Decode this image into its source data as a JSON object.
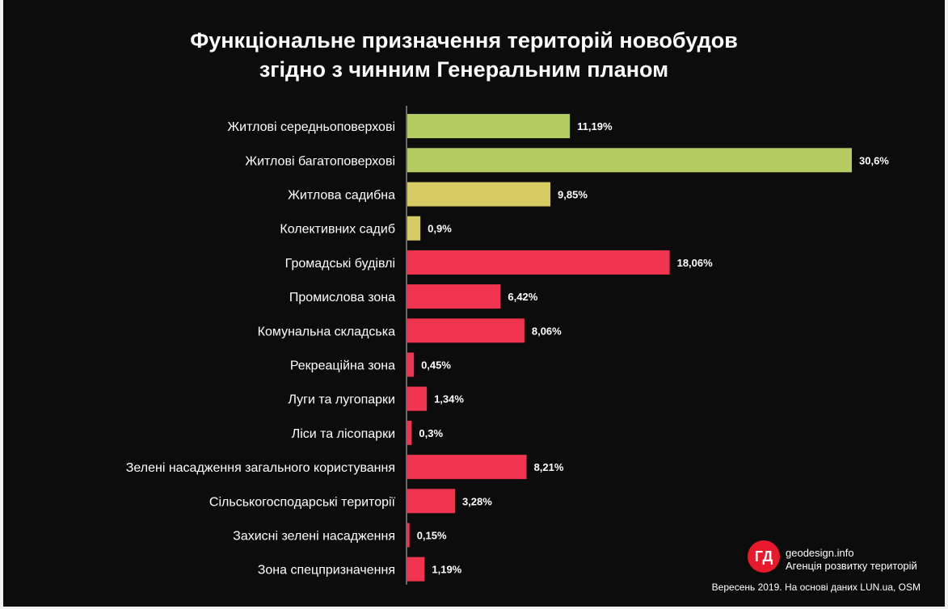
{
  "chart_data": {
    "type": "bar",
    "orientation": "horizontal",
    "title_lines": [
      "Функціональне призначення територій новобудов",
      "згідно з чинним Генеральним планом"
    ],
    "categories": [
      "Житлові середньоповерхові",
      "Житлові багатоповерхові",
      "Житлова садибна",
      "Колективних садиб",
      "Громадські будівлі",
      "Промислова зона",
      "Комунальна складська",
      "Рекреаційна зона",
      "Луги та лугопарки",
      "Ліси та лісопарки",
      "Зелені насадження загального користування",
      "Сільськогосподарські території",
      "Захисні зелені насадження",
      "Зона спецпризначення"
    ],
    "values": [
      11.19,
      30.6,
      9.85,
      0.9,
      18.06,
      6.42,
      8.06,
      0.45,
      1.34,
      0.3,
      8.21,
      3.28,
      0.15,
      1.19
    ],
    "value_labels": [
      "11,19%",
      "30,6%",
      "9,85%",
      "0,9%",
      "18,06%",
      "6,42%",
      "8,06%",
      "0,45%",
      "1,34%",
      "0,3%",
      "8,21%",
      "3,28%",
      "0,15%",
      "1,19%"
    ],
    "colors": [
      "#b5cc63",
      "#b5cc63",
      "#d7cb63",
      "#d7cb63",
      "#f0344f",
      "#f0344f",
      "#f0344f",
      "#f0344f",
      "#f0344f",
      "#f0344f",
      "#f0344f",
      "#f0344f",
      "#f0344f",
      "#f0344f"
    ],
    "xlim": [
      0,
      30.6
    ],
    "grid": false,
    "legend": "none"
  },
  "theme": {
    "background": "#0c0c0c",
    "text": "#ffffff",
    "axis_line": "#8a8a8a"
  },
  "branding": {
    "logo_text": "ГД",
    "site": "geodesign.info",
    "tagline": "Агенція розвитку територій",
    "logo_color": "#e8182d"
  },
  "source": "Вересень 2019. На основі даних LUN.ua, OSM"
}
